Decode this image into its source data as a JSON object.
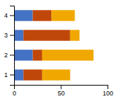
{
  "chart_data": {
    "type": "bar",
    "orientation": "horizontal",
    "stacked": true,
    "grid": false,
    "categories": [
      "1",
      "2",
      "3",
      "4"
    ],
    "series": [
      {
        "color": "#4472C4",
        "values": [
          10,
          20,
          10,
          20
        ]
      },
      {
        "color": "#C0470A",
        "values": [
          20,
          10,
          50,
          20
        ]
      },
      {
        "color": "#F0A800",
        "values": [
          30,
          55,
          10,
          25
        ]
      }
    ],
    "xlim": [
      0,
      100
    ],
    "xticks": [
      0,
      50,
      100
    ]
  }
}
